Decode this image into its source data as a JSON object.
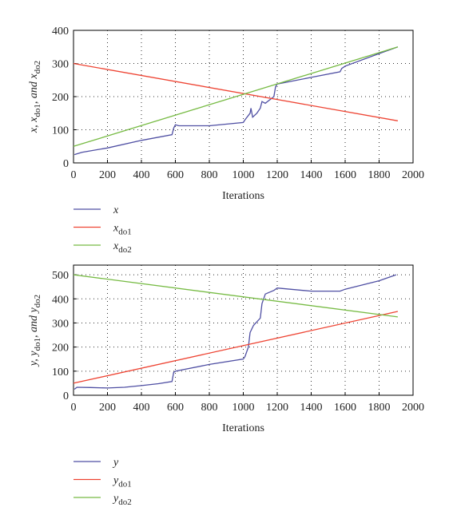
{
  "chart_data": [
    {
      "type": "line",
      "ylabel": [
        {
          "text": "x, x",
          "sub": "do1"
        },
        {
          "text": ", and x",
          "sub": "do2"
        }
      ],
      "xlabel": "Iterations",
      "xlim": [
        0,
        2000
      ],
      "xticks": [
        0,
        200,
        400,
        600,
        800,
        1000,
        1200,
        1400,
        1600,
        1800,
        2000
      ],
      "ylim": [
        0,
        400
      ],
      "yticks": [
        0,
        100,
        200,
        300,
        400
      ],
      "grid": true,
      "series": [
        {
          "name": "x",
          "color": "#4f4fa3",
          "x": [
            5,
            50,
            200,
            400,
            580,
            590,
            600,
            620,
            800,
            1000,
            1010,
            1040,
            1045,
            1055,
            1080,
            1100,
            1110,
            1130,
            1180,
            1190,
            1200,
            1400,
            1570,
            1580,
            1600,
            1800,
            1910
          ],
          "values": [
            25,
            32,
            45,
            68,
            85,
            105,
            115,
            112,
            112,
            122,
            130,
            150,
            165,
            138,
            150,
            165,
            185,
            180,
            200,
            230,
            238,
            258,
            275,
            285,
            292,
            330,
            350
          ]
        },
        {
          "name": "x",
          "subscript": "do1",
          "color": "#ee4433",
          "x": [
            0,
            1910
          ],
          "values": [
            300,
            127
          ]
        },
        {
          "name": "x",
          "subscript": "do2",
          "color": "#77bb44",
          "x": [
            0,
            1910
          ],
          "values": [
            50,
            350
          ]
        }
      ]
    },
    {
      "type": "line",
      "ylabel": [
        {
          "text": "y, y",
          "sub": "do1"
        },
        {
          "text": ", and y",
          "sub": "do2"
        }
      ],
      "xlabel": "Iterations",
      "xlim": [
        0,
        2000
      ],
      "xticks": [
        0,
        200,
        400,
        600,
        800,
        1000,
        1200,
        1400,
        1600,
        1800,
        2000
      ],
      "ylim": [
        0,
        540
      ],
      "yticks": [
        0,
        100,
        200,
        300,
        400,
        500
      ],
      "grid": true,
      "series": [
        {
          "name": "y",
          "color": "#4f4fa3",
          "x": [
            5,
            20,
            100,
            200,
            300,
            400,
            500,
            580,
            590,
            600,
            800,
            1000,
            1010,
            1030,
            1040,
            1060,
            1100,
            1110,
            1130,
            1180,
            1200,
            1400,
            1570,
            1600,
            1800,
            1900
          ],
          "values": [
            25,
            33,
            32,
            30,
            33,
            40,
            48,
            57,
            95,
            100,
            128,
            150,
            160,
            200,
            260,
            290,
            320,
            380,
            420,
            435,
            445,
            432,
            432,
            440,
            475,
            500
          ]
        },
        {
          "name": "y",
          "subscript": "do1",
          "color": "#ee4433",
          "x": [
            0,
            1910
          ],
          "values": [
            50,
            348
          ]
        },
        {
          "name": "y",
          "subscript": "do2",
          "color": "#77bb44",
          "x": [
            0,
            1910
          ],
          "values": [
            500,
            325
          ]
        }
      ]
    }
  ]
}
